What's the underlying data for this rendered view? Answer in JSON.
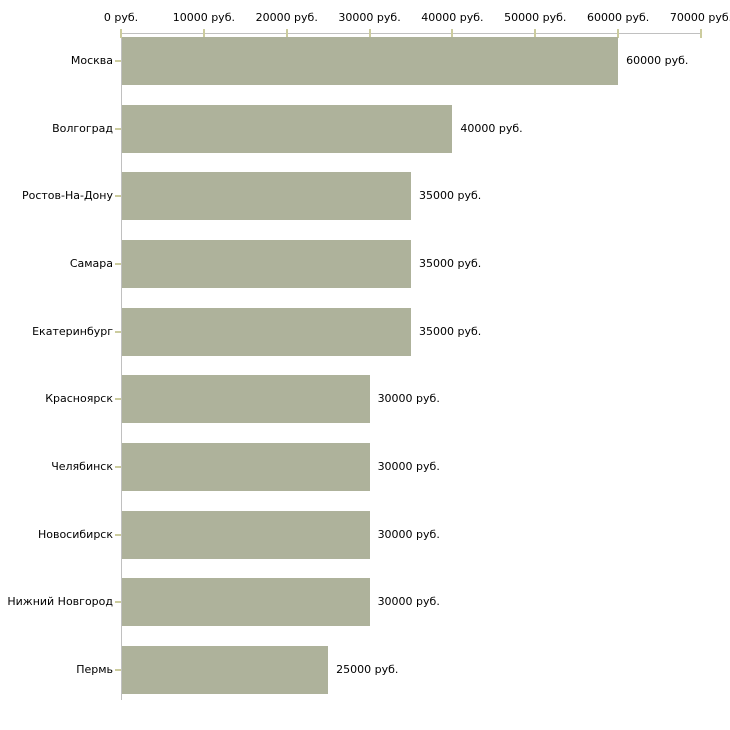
{
  "chart_data": {
    "type": "bar",
    "orientation": "horizontal",
    "title": "",
    "xlabel": "",
    "ylabel": "",
    "unit": "руб.",
    "categories": [
      "Москва",
      "Волгоград",
      "Ростов-На-Дону",
      "Самара",
      "Екатеринбург",
      "Красноярск",
      "Челябинск",
      "Новосибирск",
      "Нижний Новгород",
      "Пермь"
    ],
    "values": [
      60000,
      40000,
      35000,
      35000,
      35000,
      30000,
      30000,
      30000,
      30000,
      25000
    ],
    "value_labels": [
      "60000 руб.",
      "40000 руб.",
      "35000 руб.",
      "35000 руб.",
      "35000 руб.",
      "30000 руб.",
      "30000 руб.",
      "30000 руб.",
      "30000 руб.",
      "25000 руб."
    ],
    "x_tick_values": [
      0,
      10000,
      20000,
      30000,
      40000,
      50000,
      60000,
      70000
    ],
    "x_tick_labels": [
      "0 руб.",
      "10000 руб.",
      "20000 руб.",
      "30000 руб.",
      "40000 руб.",
      "50000 руб.",
      "60000 руб.",
      "70000 руб."
    ],
    "xlim": [
      0,
      70000
    ],
    "grid": false,
    "legend": false,
    "axis_position": "top",
    "colors": {
      "bar": "#aeb29b",
      "axis": "#c0c0c0",
      "tick": "#cccc9e",
      "text": "#000000",
      "background": "#ffffff"
    }
  }
}
